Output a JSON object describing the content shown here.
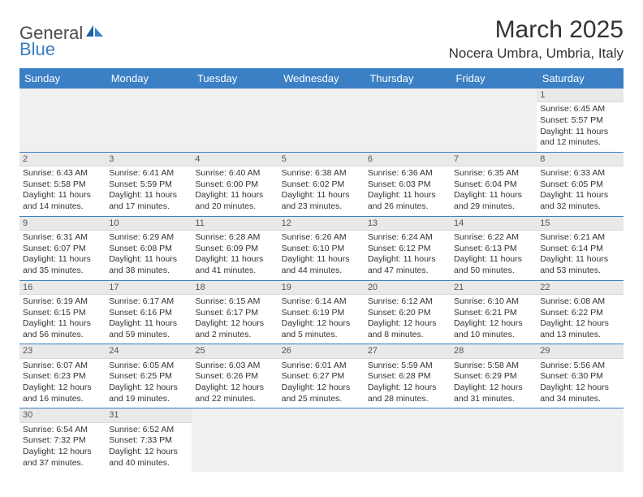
{
  "logo": {
    "general": "General",
    "blue": "Blue"
  },
  "title": "March 2025",
  "location": "Nocera Umbra, Umbria, Italy",
  "weekdays": [
    "Sunday",
    "Monday",
    "Tuesday",
    "Wednesday",
    "Thursday",
    "Friday",
    "Saturday"
  ],
  "colors": {
    "header_bg": "#3b7fc4",
    "header_text": "#ffffff",
    "daynum_bg": "#e9e9e9",
    "blank_bg": "#f0f0f0",
    "border": "#3b7fc4",
    "text": "#333333"
  },
  "weeks": [
    [
      null,
      null,
      null,
      null,
      null,
      null,
      {
        "n": "1",
        "sr": "Sunrise: 6:45 AM",
        "ss": "Sunset: 5:57 PM",
        "d1": "Daylight: 11 hours",
        "d2": "and 12 minutes."
      }
    ],
    [
      {
        "n": "2",
        "sr": "Sunrise: 6:43 AM",
        "ss": "Sunset: 5:58 PM",
        "d1": "Daylight: 11 hours",
        "d2": "and 14 minutes."
      },
      {
        "n": "3",
        "sr": "Sunrise: 6:41 AM",
        "ss": "Sunset: 5:59 PM",
        "d1": "Daylight: 11 hours",
        "d2": "and 17 minutes."
      },
      {
        "n": "4",
        "sr": "Sunrise: 6:40 AM",
        "ss": "Sunset: 6:00 PM",
        "d1": "Daylight: 11 hours",
        "d2": "and 20 minutes."
      },
      {
        "n": "5",
        "sr": "Sunrise: 6:38 AM",
        "ss": "Sunset: 6:02 PM",
        "d1": "Daylight: 11 hours",
        "d2": "and 23 minutes."
      },
      {
        "n": "6",
        "sr": "Sunrise: 6:36 AM",
        "ss": "Sunset: 6:03 PM",
        "d1": "Daylight: 11 hours",
        "d2": "and 26 minutes."
      },
      {
        "n": "7",
        "sr": "Sunrise: 6:35 AM",
        "ss": "Sunset: 6:04 PM",
        "d1": "Daylight: 11 hours",
        "d2": "and 29 minutes."
      },
      {
        "n": "8",
        "sr": "Sunrise: 6:33 AM",
        "ss": "Sunset: 6:05 PM",
        "d1": "Daylight: 11 hours",
        "d2": "and 32 minutes."
      }
    ],
    [
      {
        "n": "9",
        "sr": "Sunrise: 6:31 AM",
        "ss": "Sunset: 6:07 PM",
        "d1": "Daylight: 11 hours",
        "d2": "and 35 minutes."
      },
      {
        "n": "10",
        "sr": "Sunrise: 6:29 AM",
        "ss": "Sunset: 6:08 PM",
        "d1": "Daylight: 11 hours",
        "d2": "and 38 minutes."
      },
      {
        "n": "11",
        "sr": "Sunrise: 6:28 AM",
        "ss": "Sunset: 6:09 PM",
        "d1": "Daylight: 11 hours",
        "d2": "and 41 minutes."
      },
      {
        "n": "12",
        "sr": "Sunrise: 6:26 AM",
        "ss": "Sunset: 6:10 PM",
        "d1": "Daylight: 11 hours",
        "d2": "and 44 minutes."
      },
      {
        "n": "13",
        "sr": "Sunrise: 6:24 AM",
        "ss": "Sunset: 6:12 PM",
        "d1": "Daylight: 11 hours",
        "d2": "and 47 minutes."
      },
      {
        "n": "14",
        "sr": "Sunrise: 6:22 AM",
        "ss": "Sunset: 6:13 PM",
        "d1": "Daylight: 11 hours",
        "d2": "and 50 minutes."
      },
      {
        "n": "15",
        "sr": "Sunrise: 6:21 AM",
        "ss": "Sunset: 6:14 PM",
        "d1": "Daylight: 11 hours",
        "d2": "and 53 minutes."
      }
    ],
    [
      {
        "n": "16",
        "sr": "Sunrise: 6:19 AM",
        "ss": "Sunset: 6:15 PM",
        "d1": "Daylight: 11 hours",
        "d2": "and 56 minutes."
      },
      {
        "n": "17",
        "sr": "Sunrise: 6:17 AM",
        "ss": "Sunset: 6:16 PM",
        "d1": "Daylight: 11 hours",
        "d2": "and 59 minutes."
      },
      {
        "n": "18",
        "sr": "Sunrise: 6:15 AM",
        "ss": "Sunset: 6:17 PM",
        "d1": "Daylight: 12 hours",
        "d2": "and 2 minutes."
      },
      {
        "n": "19",
        "sr": "Sunrise: 6:14 AM",
        "ss": "Sunset: 6:19 PM",
        "d1": "Daylight: 12 hours",
        "d2": "and 5 minutes."
      },
      {
        "n": "20",
        "sr": "Sunrise: 6:12 AM",
        "ss": "Sunset: 6:20 PM",
        "d1": "Daylight: 12 hours",
        "d2": "and 8 minutes."
      },
      {
        "n": "21",
        "sr": "Sunrise: 6:10 AM",
        "ss": "Sunset: 6:21 PM",
        "d1": "Daylight: 12 hours",
        "d2": "and 10 minutes."
      },
      {
        "n": "22",
        "sr": "Sunrise: 6:08 AM",
        "ss": "Sunset: 6:22 PM",
        "d1": "Daylight: 12 hours",
        "d2": "and 13 minutes."
      }
    ],
    [
      {
        "n": "23",
        "sr": "Sunrise: 6:07 AM",
        "ss": "Sunset: 6:23 PM",
        "d1": "Daylight: 12 hours",
        "d2": "and 16 minutes."
      },
      {
        "n": "24",
        "sr": "Sunrise: 6:05 AM",
        "ss": "Sunset: 6:25 PM",
        "d1": "Daylight: 12 hours",
        "d2": "and 19 minutes."
      },
      {
        "n": "25",
        "sr": "Sunrise: 6:03 AM",
        "ss": "Sunset: 6:26 PM",
        "d1": "Daylight: 12 hours",
        "d2": "and 22 minutes."
      },
      {
        "n": "26",
        "sr": "Sunrise: 6:01 AM",
        "ss": "Sunset: 6:27 PM",
        "d1": "Daylight: 12 hours",
        "d2": "and 25 minutes."
      },
      {
        "n": "27",
        "sr": "Sunrise: 5:59 AM",
        "ss": "Sunset: 6:28 PM",
        "d1": "Daylight: 12 hours",
        "d2": "and 28 minutes."
      },
      {
        "n": "28",
        "sr": "Sunrise: 5:58 AM",
        "ss": "Sunset: 6:29 PM",
        "d1": "Daylight: 12 hours",
        "d2": "and 31 minutes."
      },
      {
        "n": "29",
        "sr": "Sunrise: 5:56 AM",
        "ss": "Sunset: 6:30 PM",
        "d1": "Daylight: 12 hours",
        "d2": "and 34 minutes."
      }
    ],
    [
      {
        "n": "30",
        "sr": "Sunrise: 6:54 AM",
        "ss": "Sunset: 7:32 PM",
        "d1": "Daylight: 12 hours",
        "d2": "and 37 minutes."
      },
      {
        "n": "31",
        "sr": "Sunrise: 6:52 AM",
        "ss": "Sunset: 7:33 PM",
        "d1": "Daylight: 12 hours",
        "d2": "and 40 minutes."
      },
      null,
      null,
      null,
      null,
      null
    ]
  ]
}
